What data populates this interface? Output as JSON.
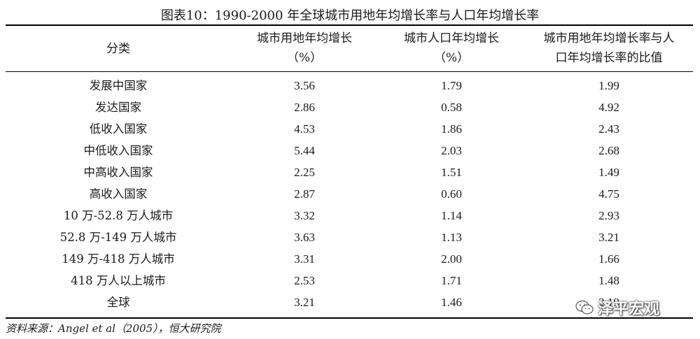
{
  "title": "图表10：1990-2000 年全球城市用地年均增长率与人口年均增长率",
  "headers": {
    "category": "分类",
    "land_growth_line1": "城市用地年均增长",
    "land_growth_line2": "（%）",
    "pop_growth_line1": "城市人口年均增长",
    "pop_growth_line2": "（%）",
    "ratio_line1": "城市用地年均增长率与人",
    "ratio_line2": "口年均增长率的比值"
  },
  "rows": [
    {
      "category": "发展中国家",
      "land": "3.56",
      "pop": "1.79",
      "ratio": "1.99"
    },
    {
      "category": "发达国家",
      "land": "2.86",
      "pop": "0.58",
      "ratio": "4.92"
    },
    {
      "category": "低收入国家",
      "land": "4.53",
      "pop": "1.86",
      "ratio": "2.43"
    },
    {
      "category": "中低收入国家",
      "land": "5.44",
      "pop": "2.03",
      "ratio": "2.68"
    },
    {
      "category": "中高收入国家",
      "land": "2.25",
      "pop": "1.51",
      "ratio": "1.49"
    },
    {
      "category": "高收入国家",
      "land": "2.87",
      "pop": "0.60",
      "ratio": "4.75"
    },
    {
      "category": "10 万-52.8 万人城市",
      "land": "3.32",
      "pop": "1.14",
      "ratio": "2.93"
    },
    {
      "category": "52.8 万-149 万人城市",
      "land": "3.63",
      "pop": "1.13",
      "ratio": "3.21"
    },
    {
      "category": "149 万-418 万人城市",
      "land": "3.31",
      "pop": "2.00",
      "ratio": "1.66"
    },
    {
      "category": "418 万人以上城市",
      "land": "2.53",
      "pop": "1.71",
      "ratio": "1.48"
    },
    {
      "category": "全球",
      "land": "3.21",
      "pop": "1.46",
      "ratio": "2.19"
    }
  ],
  "source": "资料来源：Angel et al（2005），恒大研究院",
  "watermark": {
    "icon": "wechat-icon",
    "text": "泽平宏观"
  }
}
